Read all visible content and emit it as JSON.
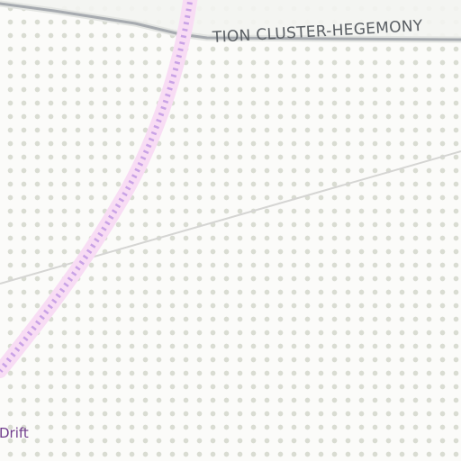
{
  "map": {
    "labels": {
      "region": "TION CLUSTER-HEGEMONY",
      "route": "Drift"
    },
    "colors": {
      "background": "#fbfbf9",
      "dot_grid": "#d9dcd2",
      "territory_fill": "#f3f4f1",
      "territory_border": "#a7abb0",
      "route_line": "#c9a2e6",
      "route_glow": "#f8dcf4",
      "lane_line": "#d5d5d3",
      "region_text": "#5a5f64",
      "route_text": "#6f3b8c"
    }
  }
}
